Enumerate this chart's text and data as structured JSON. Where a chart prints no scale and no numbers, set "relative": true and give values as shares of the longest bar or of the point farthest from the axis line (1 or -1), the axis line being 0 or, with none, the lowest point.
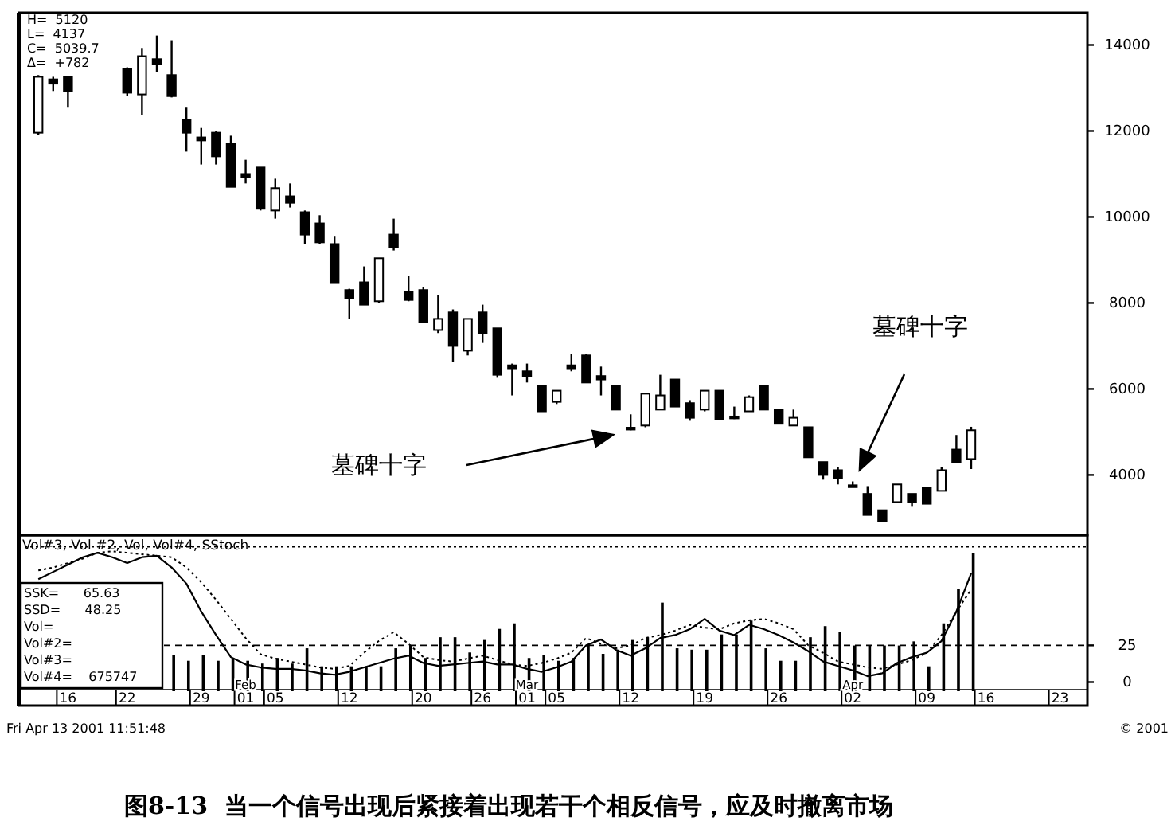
{
  "chart_data": [
    {
      "type": "candlestick",
      "title": "图8-13  当一个信号出现后紧接着出现若干个相反信号，应及时撤离市场",
      "color": "#000000",
      "categories": [
        null,
        null,
        null,
        null,
        null,
        null,
        null,
        null,
        null,
        null,
        null,
        null,
        null,
        null,
        null,
        null,
        null,
        null,
        null,
        null,
        null,
        null,
        null,
        null,
        null,
        null,
        null,
        null,
        null,
        null,
        null,
        null,
        null,
        null,
        null,
        null,
        null,
        null,
        null,
        null,
        null,
        null,
        null,
        null,
        null,
        null,
        null,
        null,
        null,
        null,
        null,
        null,
        null,
        null,
        null,
        null,
        null,
        null,
        null,
        null,
        null,
        null,
        null,
        null,
        null,
        null,
        null,
        null,
        null,
        null,
        null
      ],
      "ohlc": [
        [
          11960,
          13300,
          11900,
          13260
        ],
        [
          13200,
          13260,
          12930,
          13100
        ],
        [
          13260,
          13260,
          12560,
          12930
        ],
        null,
        null,
        null,
        [
          13440,
          13480,
          12810,
          12890
        ],
        [
          12850,
          13930,
          12370,
          13740
        ],
        [
          13670,
          14220,
          13370,
          13560
        ],
        [
          13300,
          14110,
          12780,
          12810
        ],
        [
          12260,
          12560,
          11520,
          11960
        ],
        [
          11850,
          12070,
          11220,
          11780
        ],
        [
          11960,
          12000,
          11220,
          11410
        ],
        [
          11700,
          11890,
          10700,
          10700
        ],
        [
          11000,
          11330,
          10780,
          10930
        ],
        [
          11150,
          11150,
          10150,
          10190
        ],
        [
          10150,
          10890,
          9960,
          10670
        ],
        [
          10480,
          10780,
          10220,
          10330
        ],
        [
          10110,
          10150,
          9370,
          9590
        ],
        [
          9850,
          10040,
          9370,
          9410
        ],
        [
          9370,
          9560,
          8480,
          8480
        ],
        [
          8300,
          8330,
          7630,
          8110
        ],
        [
          8480,
          8850,
          7960,
          7960
        ],
        [
          8040,
          9040,
          8000,
          9040
        ],
        [
          9590,
          9960,
          9220,
          9300
        ],
        [
          8260,
          8630,
          8040,
          8070
        ],
        [
          8300,
          8370,
          7560,
          7560
        ],
        [
          7370,
          8190,
          7300,
          7630
        ],
        [
          7780,
          7850,
          6630,
          7000
        ],
        [
          6890,
          7630,
          6780,
          7630
        ],
        [
          7780,
          7960,
          7070,
          7300
        ],
        [
          7410,
          7410,
          6260,
          6330
        ],
        [
          6550,
          6590,
          5850,
          6480
        ],
        [
          6410,
          6590,
          6150,
          6300
        ],
        [
          6070,
          6070,
          5480,
          5480
        ],
        [
          5700,
          5960,
          5650,
          5960
        ],
        [
          6550,
          6810,
          6410,
          6480
        ],
        [
          6780,
          6810,
          6150,
          6150
        ],
        [
          6300,
          6520,
          5850,
          6220
        ],
        [
          6070,
          6070,
          5520,
          5520
        ],
        [
          5100,
          5410,
          5040,
          5080
        ],
        [
          5150,
          5890,
          5110,
          5890
        ],
        [
          5520,
          6330,
          5520,
          5850
        ],
        [
          6220,
          6220,
          5590,
          5590
        ],
        [
          5670,
          5740,
          5260,
          5330
        ],
        [
          5520,
          5960,
          5480,
          5960
        ],
        [
          5960,
          5960,
          5300,
          5300
        ],
        [
          5360,
          5590,
          5300,
          5330
        ],
        [
          5480,
          5850,
          5480,
          5810
        ],
        [
          6070,
          6070,
          5520,
          5520
        ],
        [
          5520,
          5520,
          5190,
          5190
        ],
        [
          5150,
          5520,
          5150,
          5330
        ],
        [
          5110,
          5110,
          4410,
          4410
        ],
        [
          4300,
          4300,
          3890,
          4000
        ],
        [
          4110,
          4180,
          3780,
          3930
        ],
        [
          3760,
          3850,
          3740,
          3750
        ],
        [
          3560,
          3740,
          3070,
          3070
        ],
        [
          3180,
          3180,
          2930,
          2930
        ],
        [
          3370,
          3780,
          3370,
          3780
        ],
        [
          3560,
          3560,
          3260,
          3370
        ],
        [
          3700,
          3700,
          3330,
          3330
        ],
        [
          3630,
          4180,
          3630,
          4110
        ],
        [
          4590,
          4930,
          4300,
          4300
        ],
        [
          4370,
          5120,
          4137,
          5039.7
        ],
        null,
        null,
        null,
        null,
        null,
        null,
        null
      ],
      "ylim": [
        2600,
        14750
      ],
      "yticks": [
        4000,
        6000,
        8000,
        10000,
        12000,
        14000
      ],
      "tick_labels": "y",
      "annotations": [
        "H=  5120",
        "L=  4137",
        "C=  5039.7",
        "Δ=  +782",
        "墓碑十字",
        "墓碑十字"
      ]
    },
    {
      "type": "line",
      "title": "Vol#3, Vol #2, Vol, Vol#4, SStoch",
      "categories": [
        null,
        null,
        "16",
        null,
        null,
        null,
        "22",
        null,
        null,
        null,
        null,
        "29",
        null,
        null,
        "Feb\n01",
        null,
        "05",
        null,
        null,
        null,
        null,
        "12",
        null,
        null,
        null,
        null,
        "20",
        null,
        null,
        null,
        "26",
        null,
        null,
        "Mar\n01",
        null,
        "05",
        null,
        null,
        null,
        null,
        "12",
        null,
        null,
        null,
        null,
        "19",
        null,
        null,
        null,
        null,
        "26",
        null,
        null,
        null,
        null,
        "Apr\n02",
        null,
        null,
        null,
        null,
        "09",
        null,
        null,
        null,
        "16",
        null,
        null,
        null,
        null,
        "23",
        null
      ],
      "series": [
        {
          "color": "#000000",
          "line_style": "solid",
          "values": [
            70,
            75,
            80,
            85,
            88,
            85,
            81,
            85,
            86,
            78,
            67,
            48,
            32,
            17,
            12,
            10,
            9,
            9,
            8,
            6,
            5,
            7,
            10,
            13,
            16,
            18,
            13,
            11,
            12,
            13,
            14,
            12,
            12,
            9,
            7,
            10,
            14,
            25,
            29,
            22,
            18,
            23,
            30,
            32,
            36,
            43,
            35,
            32,
            39,
            36,
            32,
            27,
            21,
            14,
            11,
            8,
            4,
            6,
            13,
            17,
            20,
            28,
            48,
            74,
            null,
            null,
            null,
            null,
            null,
            null,
            null
          ]
        },
        {
          "color": "#000000",
          "line_style": "dotted",
          "values": [
            76,
            78,
            81,
            84,
            88,
            89,
            88,
            87,
            86,
            85,
            78,
            68,
            56,
            43,
            30,
            19,
            16,
            14,
            12,
            10,
            9,
            11,
            20,
            28,
            34,
            26,
            17,
            15,
            14,
            16,
            18,
            15,
            12,
            11,
            13,
            16,
            20,
            30,
            26,
            23,
            25,
            30,
            32,
            35,
            39,
            37,
            36,
            40,
            42,
            43,
            40,
            36,
            25,
            20,
            14,
            12,
            10,
            9,
            12,
            15,
            20,
            32,
            48,
            63,
            null,
            null,
            null,
            null,
            null,
            null,
            null
          ]
        }
      ],
      "ylim": [
        -16,
        100
      ],
      "yticks": [
        0,
        25
      ],
      "ref_lines": [
        {
          "axis": "y",
          "value": 25,
          "line_style": "dashed"
        },
        {
          "axis": "y",
          "value": 92,
          "line_style": "dotted"
        }
      ],
      "annotations": [
        "SSK=      65.63",
        "SSD=      48.25",
        "Vol=",
        "Vol#2=",
        "Vol#3=",
        "Vol#4=    675747",
        "Fri Apr 13 2001 11:51:48",
        "© 2001"
      ]
    },
    {
      "type": "bar",
      "relative": true,
      "color": "#000000",
      "tick_labels": false,
      "categories": [
        null,
        null,
        null,
        null,
        null,
        null,
        null,
        null,
        null,
        null,
        null,
        null,
        null,
        null,
        null,
        null,
        null,
        null,
        null,
        null,
        null,
        null,
        null,
        null,
        null,
        null,
        null,
        null,
        null,
        null,
        null,
        null,
        null,
        null,
        null,
        null,
        null,
        null,
        null,
        null,
        null,
        null,
        null,
        null,
        null,
        null,
        null,
        null,
        null,
        null,
        null,
        null,
        null,
        null,
        null,
        null,
        null,
        null,
        null,
        null,
        null,
        null,
        null,
        null,
        null,
        null,
        null,
        null,
        null,
        null,
        null
      ],
      "values": [
        null,
        null,
        null,
        null,
        null,
        null,
        null,
        null,
        null,
        0.26,
        0.22,
        0.26,
        0.22,
        0.24,
        0.22,
        0.2,
        0.24,
        0.2,
        0.31,
        0.18,
        0.18,
        0.18,
        0.18,
        0.18,
        0.31,
        0.33,
        0.24,
        0.39,
        0.39,
        0.28,
        0.37,
        0.45,
        0.49,
        0.24,
        0.26,
        0.22,
        0.24,
        0.33,
        0.27,
        0.3,
        0.37,
        0.39,
        0.64,
        0.31,
        0.3,
        0.3,
        0.41,
        0.41,
        0.51,
        0.31,
        0.22,
        0.22,
        0.39,
        0.47,
        0.43,
        0.33,
        0.33,
        0.33,
        0.33,
        0.36,
        0.18,
        0.49,
        0.74,
        1,
        null,
        null,
        null,
        null,
        null,
        null,
        null
      ]
    }
  ]
}
